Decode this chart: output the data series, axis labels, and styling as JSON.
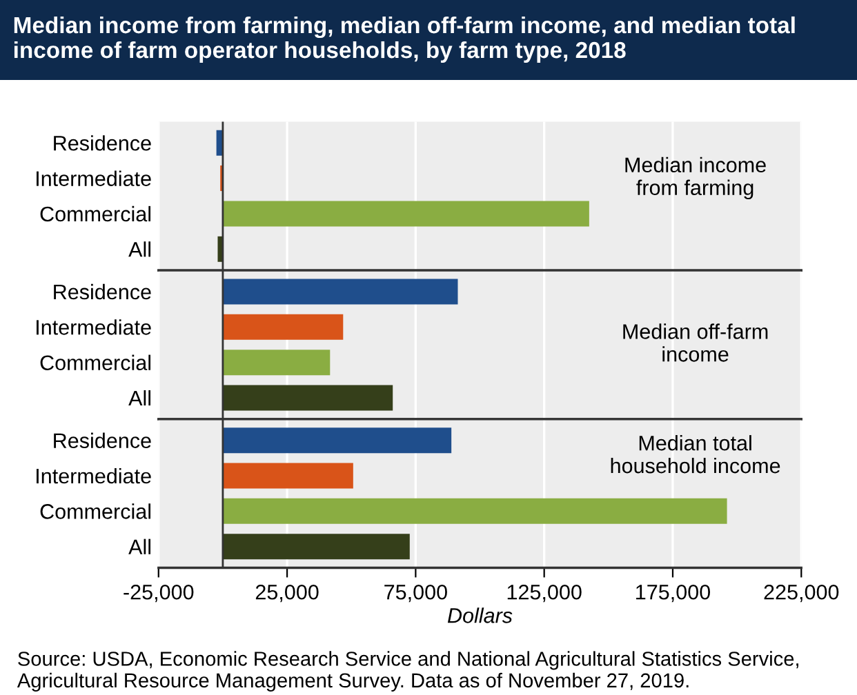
{
  "chart_data": [
    {
      "type": "bar",
      "orientation": "horizontal",
      "title": "Median income from farming, median off-farm income, and median total income of farm operator households, by farm type, 2018",
      "categories": [
        "Residence",
        "Intermediate",
        "Commercial",
        "All"
      ],
      "values": [
        -2500,
        -1000,
        142500,
        -2000
      ],
      "colors": [
        "#1f4e8c",
        "#d95419",
        "#8aad42",
        "#353f1a"
      ],
      "annotations": [
        "Median income\nfrom farming"
      ],
      "xlim": [
        -25000,
        225000
      ],
      "xticks": [
        {
          "value": -25000,
          "label": null
        },
        {
          "value": 25000,
          "label": null
        },
        {
          "value": 75000,
          "label": null
        },
        {
          "value": 125000,
          "label": null
        },
        {
          "value": 175000,
          "label": null
        },
        {
          "value": 225000,
          "label": null
        }
      ],
      "ref_lines": [
        {
          "axis": "x",
          "value": 0,
          "color": "#333333"
        }
      ],
      "grid": "x",
      "legend": false,
      "tick_labels": "y"
    },
    {
      "type": "bar",
      "orientation": "horizontal",
      "categories": [
        "Residence",
        "Intermediate",
        "Commercial",
        "All"
      ],
      "values": [
        91400,
        46800,
        41700,
        66100
      ],
      "colors": [
        "#1f4e8c",
        "#d95419",
        "#8aad42",
        "#353f1a"
      ],
      "annotations": [
        "Median off-farm\nincome"
      ],
      "xlim": [
        -25000,
        225000
      ],
      "xticks": [
        {
          "value": -25000,
          "label": null
        },
        {
          "value": 25000,
          "label": null
        },
        {
          "value": 75000,
          "label": null
        },
        {
          "value": 125000,
          "label": null
        },
        {
          "value": 175000,
          "label": null
        },
        {
          "value": 225000,
          "label": null
        }
      ],
      "ref_lines": [
        {
          "axis": "x",
          "value": 0,
          "color": "#333333"
        }
      ],
      "grid": "x",
      "legend": false,
      "tick_labels": "y"
    },
    {
      "type": "bar",
      "orientation": "horizontal",
      "xlabel": "Dollars",
      "categories": [
        "Residence",
        "Intermediate",
        "Commercial",
        "All"
      ],
      "values": [
        88900,
        50700,
        196100,
        72700
      ],
      "colors": [
        "#1f4e8c",
        "#d95419",
        "#8aad42",
        "#353f1a"
      ],
      "annotations": [
        "Median total\nhousehold income",
        "Source: USDA, Economic Research Service and National Agricultural Statistics Service, Agricultural Resource Management Survey. Data as of November 27, 2019."
      ],
      "xlim": [
        -25000,
        225000
      ],
      "xticks": [
        {
          "value": -25000,
          "label": "-25,000"
        },
        {
          "value": 25000,
          "label": "25,000"
        },
        {
          "value": 75000,
          "label": "75,000"
        },
        {
          "value": 125000,
          "label": "125,000"
        },
        {
          "value": 175000,
          "label": "175,000"
        },
        {
          "value": 225000,
          "label": "225,000"
        }
      ],
      "ref_lines": [
        {
          "axis": "x",
          "value": 0,
          "color": "#333333"
        }
      ],
      "grid": "x",
      "legend": false
    }
  ]
}
